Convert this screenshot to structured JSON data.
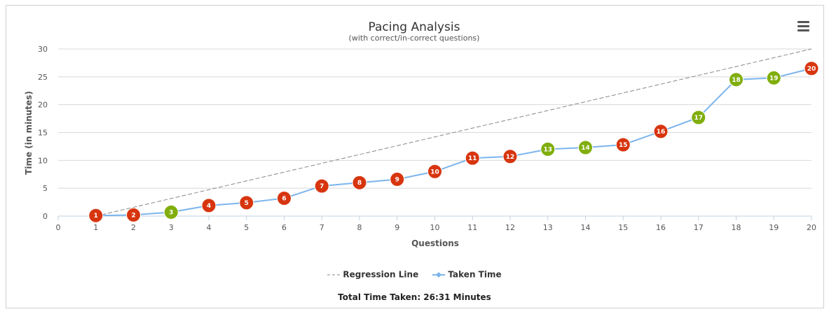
{
  "menu_icon": "hamburger-menu-icon",
  "footer": {
    "total_label": "Total Time Taken: 26:31 Minutes"
  },
  "chart_data": {
    "type": "line",
    "title": "Pacing Analysis",
    "subtitle": "(with correct/in-correct questions)",
    "xlabel": "Questions",
    "ylabel": "Time (in minutes)",
    "xlim": [
      0,
      20
    ],
    "ylim": [
      0,
      30
    ],
    "xticks": [
      0,
      1,
      2,
      3,
      4,
      5,
      6,
      7,
      8,
      9,
      10,
      11,
      12,
      13,
      14,
      15,
      16,
      17,
      18,
      19,
      20
    ],
    "yticks": [
      0,
      5,
      10,
      15,
      20,
      25,
      30
    ],
    "grid": "horizontal",
    "legend_position": "bottom-center",
    "series": [
      {
        "name": "Regression Line",
        "style": "dashed",
        "color": "#888888",
        "x": [
          1,
          20
        ],
        "y": [
          0,
          30
        ]
      },
      {
        "name": "Taken Time",
        "style": "solid",
        "color": "#7cb5ec",
        "x": [
          1,
          2,
          3,
          4,
          5,
          6,
          7,
          8,
          9,
          10,
          11,
          12,
          13,
          14,
          15,
          16,
          17,
          18,
          19,
          20
        ],
        "y": [
          0.1,
          0.2,
          0.7,
          1.9,
          2.4,
          3.2,
          5.4,
          6.0,
          6.6,
          8.0,
          10.4,
          10.7,
          12.0,
          12.3,
          12.8,
          15.2,
          17.7,
          24.5,
          24.8,
          26.5
        ],
        "point_labels": [
          "1",
          "2",
          "3",
          "4",
          "5",
          "6",
          "7",
          "8",
          "9",
          "10",
          "11",
          "12",
          "13",
          "14",
          "15",
          "16",
          "17",
          "18",
          "19",
          "20"
        ],
        "status": [
          "incorrect",
          "incorrect",
          "correct",
          "incorrect",
          "incorrect",
          "incorrect",
          "incorrect",
          "incorrect",
          "incorrect",
          "incorrect",
          "incorrect",
          "incorrect",
          "correct",
          "correct",
          "incorrect",
          "incorrect",
          "correct",
          "correct",
          "correct",
          "incorrect"
        ]
      }
    ],
    "status_colors": {
      "correct": "#80ae0c",
      "incorrect": "#d7350f"
    },
    "colors": {
      "grid": "#d8d8d8",
      "axis": "#c0d0e0",
      "tick_text": "#555555",
      "title_text": "#333333"
    }
  }
}
